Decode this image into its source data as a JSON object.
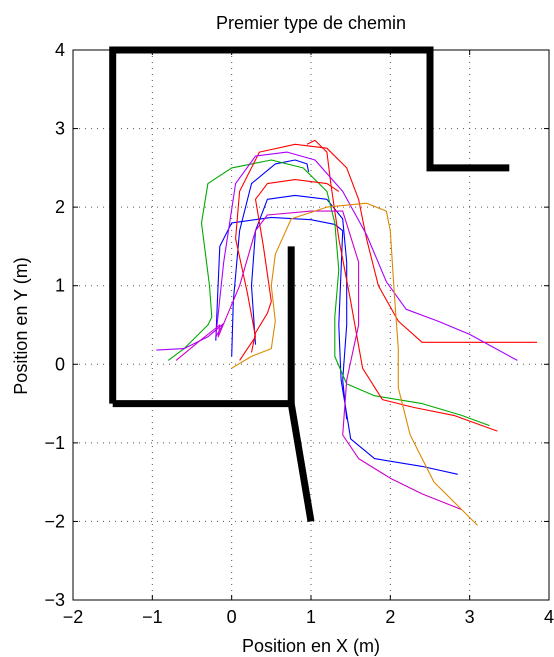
{
  "chart_data": {
    "type": "line",
    "title": "Premier type de chemin",
    "xlabel": "Position en X (m)",
    "ylabel": "Position en Y (m)",
    "xlim": [
      -2,
      4
    ],
    "ylim": [
      -3,
      4
    ],
    "xticks": [
      -2,
      -1,
      0,
      1,
      2,
      3,
      4
    ],
    "yticks": [
      -3,
      -2,
      -1,
      0,
      1,
      2,
      3,
      4
    ],
    "grid": true,
    "walls": [
      {
        "color": "#000000",
        "points": [
          [
            -1.5,
            -0.5
          ],
          [
            -1.5,
            4.0
          ],
          [
            2.5,
            4.0
          ],
          [
            2.5,
            2.5
          ],
          [
            3.5,
            2.5
          ]
        ]
      },
      {
        "color": "#000000",
        "points": [
          [
            -1.5,
            -0.5
          ],
          [
            0.75,
            -0.5
          ],
          [
            1.0,
            -2.0
          ]
        ]
      },
      {
        "color": "#000000",
        "points": [
          [
            0.75,
            -0.5
          ],
          [
            0.75,
            1.5
          ]
        ]
      }
    ],
    "series": [
      {
        "color": "#0000ff",
        "points": [
          [
            -0.2,
            0.3
          ],
          [
            -0.18,
            0.8
          ],
          [
            -0.15,
            1.5
          ],
          [
            0.0,
            1.8
          ],
          [
            0.5,
            1.87
          ],
          [
            1.0,
            1.84
          ],
          [
            1.3,
            1.78
          ],
          [
            1.4,
            1.7
          ],
          [
            1.38,
            1.2
          ],
          [
            1.35,
            0.5
          ],
          [
            1.38,
            -0.2
          ],
          [
            1.5,
            -0.95
          ],
          [
            1.8,
            -1.2
          ],
          [
            2.4,
            -1.3
          ],
          [
            2.85,
            -1.4
          ]
        ]
      },
      {
        "color": "#0000ff",
        "points": [
          [
            0.0,
            0.1
          ],
          [
            0.02,
            0.8
          ],
          [
            0.1,
            1.7
          ],
          [
            0.25,
            2.3
          ],
          [
            0.55,
            2.55
          ],
          [
            0.8,
            2.6
          ],
          [
            0.95,
            2.55
          ],
          [
            0.97,
            2.45
          ]
        ]
      },
      {
        "color": "#0000ff",
        "points": [
          [
            0.3,
            0.25
          ],
          [
            0.25,
            1.0
          ],
          [
            0.3,
            1.7
          ],
          [
            0.45,
            2.1
          ],
          [
            0.8,
            2.15
          ],
          [
            1.2,
            2.1
          ],
          [
            1.4,
            1.85
          ],
          [
            1.45,
            1.3
          ],
          [
            1.45,
            0.5
          ],
          [
            1.4,
            -0.2
          ],
          [
            1.45,
            -0.7
          ]
        ]
      },
      {
        "color": "#00aa00",
        "points": [
          [
            -0.8,
            0.05
          ],
          [
            -0.6,
            0.2
          ],
          [
            -0.3,
            0.5
          ],
          [
            -0.25,
            0.6
          ],
          [
            -0.28,
            1.0
          ],
          [
            -0.38,
            1.8
          ],
          [
            -0.3,
            2.3
          ],
          [
            0.0,
            2.5
          ],
          [
            0.5,
            2.6
          ],
          [
            0.9,
            2.5
          ],
          [
            1.2,
            2.2
          ],
          [
            1.3,
            1.8
          ],
          [
            1.35,
            1.2
          ],
          [
            1.3,
            0.6
          ],
          [
            1.3,
            0.1
          ],
          [
            1.45,
            -0.25
          ],
          [
            1.8,
            -0.4
          ],
          [
            2.4,
            -0.5
          ],
          [
            2.9,
            -0.65
          ],
          [
            3.25,
            -0.78
          ]
        ]
      },
      {
        "color": "#ff0000",
        "points": [
          [
            0.1,
            0.05
          ],
          [
            0.2,
            0.2
          ],
          [
            0.3,
            0.35
          ],
          [
            0.2,
            0.9
          ],
          [
            0.05,
            1.6
          ],
          [
            0.1,
            2.2
          ],
          [
            0.35,
            2.7
          ],
          [
            0.8,
            2.8
          ],
          [
            1.2,
            2.75
          ],
          [
            1.45,
            2.5
          ],
          [
            1.6,
            2.1
          ],
          [
            1.7,
            1.6
          ],
          [
            1.85,
            1.0
          ],
          [
            2.1,
            0.55
          ],
          [
            2.4,
            0.28
          ],
          [
            3.0,
            0.28
          ],
          [
            3.85,
            0.28
          ]
        ]
      },
      {
        "color": "#ff0000",
        "points": [
          [
            0.25,
            0.15
          ],
          [
            0.3,
            0.4
          ],
          [
            0.45,
            0.65
          ],
          [
            0.5,
            0.8
          ],
          [
            0.4,
            1.5
          ],
          [
            0.3,
            2.1
          ],
          [
            0.45,
            2.3
          ],
          [
            0.8,
            2.35
          ],
          [
            1.2,
            2.3
          ],
          [
            1.35,
            2.2
          ]
        ]
      },
      {
        "color": "#ff0000",
        "points": [
          [
            0.95,
            2.8
          ],
          [
            1.05,
            2.85
          ],
          [
            1.2,
            2.7
          ],
          [
            1.25,
            2.3
          ],
          [
            1.35,
            1.6
          ],
          [
            1.5,
            0.8
          ],
          [
            1.65,
            -0.05
          ],
          [
            1.9,
            -0.45
          ],
          [
            2.3,
            -0.55
          ],
          [
            2.8,
            -0.65
          ],
          [
            3.35,
            -0.85
          ]
        ]
      },
      {
        "color": "#aa00ff",
        "points": [
          [
            -0.95,
            0.18
          ],
          [
            -0.6,
            0.2
          ],
          [
            -0.3,
            0.35
          ],
          [
            -0.1,
            0.52
          ],
          [
            -0.2,
            0.35
          ],
          [
            -0.1,
            1.3
          ],
          [
            0.05,
            2.3
          ],
          [
            0.3,
            2.65
          ],
          [
            0.7,
            2.7
          ],
          [
            1.05,
            2.6
          ],
          [
            1.4,
            2.2
          ],
          [
            1.7,
            1.65
          ],
          [
            1.95,
            1.05
          ],
          [
            2.2,
            0.7
          ],
          [
            2.6,
            0.55
          ],
          [
            3.0,
            0.38
          ],
          [
            3.6,
            0.05
          ]
        ]
      },
      {
        "color": "#cc00cc",
        "points": [
          [
            -0.7,
            0.05
          ],
          [
            -0.4,
            0.3
          ],
          [
            -0.15,
            0.5
          ],
          [
            -0.17,
            0.35
          ],
          [
            0.1,
            1.0
          ],
          [
            0.3,
            1.7
          ],
          [
            0.45,
            1.9
          ],
          [
            1.0,
            1.95
          ],
          [
            1.4,
            1.95
          ],
          [
            1.6,
            1.3
          ],
          [
            1.6,
            0.5
          ],
          [
            1.45,
            -0.2
          ],
          [
            1.4,
            -0.9
          ],
          [
            1.6,
            -1.2
          ],
          [
            2.0,
            -1.45
          ],
          [
            2.4,
            -1.65
          ],
          [
            2.9,
            -1.85
          ]
        ]
      },
      {
        "color": "#dd8800",
        "points": [
          [
            0.0,
            -0.05
          ],
          [
            0.25,
            0.1
          ],
          [
            0.5,
            0.2
          ],
          [
            0.55,
            0.55
          ],
          [
            0.5,
            1.0
          ],
          [
            0.55,
            1.4
          ],
          [
            0.75,
            1.85
          ],
          [
            1.2,
            2.0
          ],
          [
            1.7,
            2.05
          ],
          [
            1.95,
            1.95
          ],
          [
            2.0,
            1.7
          ],
          [
            2.05,
            0.9
          ],
          [
            2.1,
            0.2
          ],
          [
            2.1,
            -0.3
          ],
          [
            2.25,
            -0.9
          ],
          [
            2.55,
            -1.5
          ],
          [
            2.9,
            -1.85
          ],
          [
            3.1,
            -2.05
          ]
        ]
      }
    ]
  }
}
